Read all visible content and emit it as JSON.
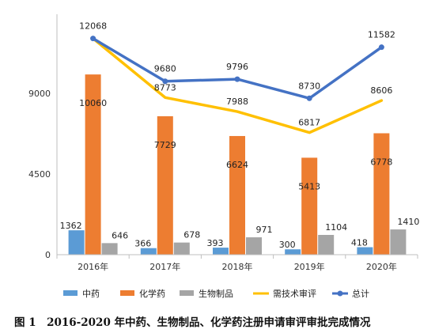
{
  "chart_data": {
    "type": "bar",
    "title": "",
    "xlabel": "",
    "ylabel": "",
    "ylim": [
      0,
      13500
    ],
    "grid": false,
    "legend_position": "bottom",
    "y_ticks": [
      "0",
      "4500",
      "9000"
    ],
    "y_tick_values": [
      0,
      4500,
      9000
    ],
    "categories": [
      "2016年",
      "2017年",
      "2018年",
      "2019年",
      "2020年"
    ],
    "series": [
      {
        "name": "中药",
        "kind": "bar",
        "color": "#5b9bd5",
        "values": [
          1362,
          366,
          393,
          300,
          418
        ]
      },
      {
        "name": "化学药",
        "kind": "bar",
        "color": "#ed7d31",
        "values": [
          10060,
          7729,
          6624,
          5413,
          6778
        ]
      },
      {
        "name": "生物制品",
        "kind": "bar",
        "color": "#a5a5a5",
        "values": [
          646,
          678,
          971,
          1104,
          1410
        ]
      },
      {
        "name": "需技术审评",
        "kind": "line",
        "color": "#ffc000",
        "values": [
          12068,
          8773,
          7988,
          6817,
          8606
        ]
      },
      {
        "name": "总计",
        "kind": "line",
        "color": "#4472c4",
        "values": [
          12068,
          9680,
          9796,
          8730,
          11582
        ]
      }
    ],
    "data_labels": {
      "中药": [
        "1362",
        "366",
        "393",
        "300",
        "418"
      ],
      "化学药": [
        "10060",
        "7729",
        "6624",
        "5413",
        "6778"
      ],
      "生物制品": [
        "646",
        "678",
        "971",
        "1104",
        "1410"
      ],
      "需技术审评": [
        "",
        "8773",
        "7988",
        "6817",
        "8606"
      ],
      "总计": [
        "12068",
        "9680",
        "9796",
        "8730",
        "11582"
      ]
    }
  },
  "caption": "图 1　2016-2020 年中药、生物制品、化学药注册申请审评审批完成情况"
}
